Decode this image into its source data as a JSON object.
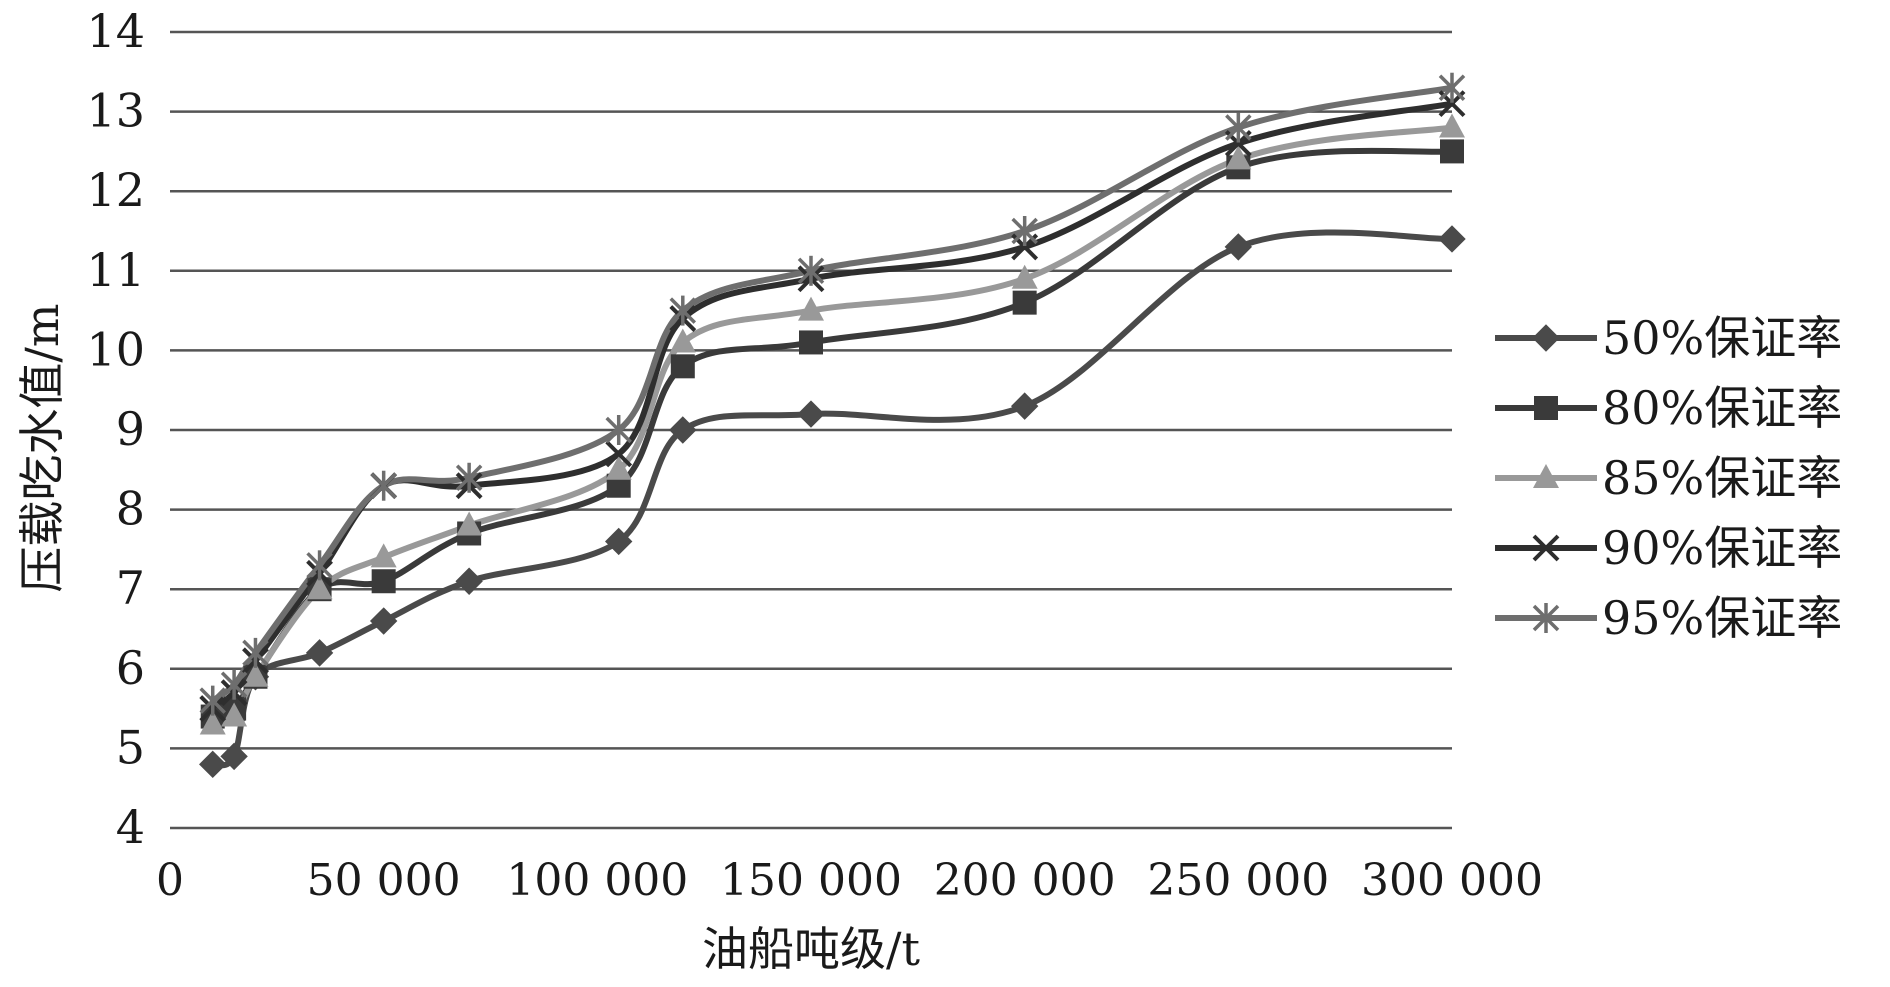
{
  "chart_data": {
    "type": "line",
    "title": "",
    "xlabel": "油船吨级/t",
    "ylabel": "压载吃水值/m",
    "x_ticks": [
      "0",
      "50 000",
      "100 000",
      "150 000",
      "200 000",
      "250 000",
      "300 000"
    ],
    "y_ticks": [
      "4",
      "5",
      "6",
      "7",
      "8",
      "9",
      "10",
      "11",
      "12",
      "13",
      "14"
    ],
    "xlim": [
      0,
      300000
    ],
    "ylim": [
      4,
      14
    ],
    "grid": "horizontal",
    "legend_position": "right",
    "x": [
      10000,
      15000,
      20000,
      35000,
      50000,
      70000,
      105000,
      120000,
      150000,
      200000,
      250000,
      300000
    ],
    "series": [
      {
        "name": "50%保证率",
        "marker": "diamond",
        "color": "#4a4a4a",
        "values": [
          4.8,
          4.9,
          5.9,
          6.2,
          6.6,
          7.1,
          7.6,
          9.0,
          9.2,
          9.3,
          11.3,
          11.4
        ]
      },
      {
        "name": "80%保证率",
        "marker": "square",
        "color": "#3a3a3a",
        "values": [
          5.4,
          5.5,
          5.9,
          7.0,
          7.1,
          7.7,
          8.3,
          9.8,
          10.1,
          10.6,
          12.3,
          12.5
        ]
      },
      {
        "name": "85%保证率",
        "marker": "triangle",
        "color": "#999999",
        "values": [
          5.3,
          5.4,
          5.9,
          7.0,
          7.4,
          7.8,
          8.5,
          10.1,
          10.5,
          10.9,
          12.4,
          12.8
        ]
      },
      {
        "name": "90%保证率",
        "marker": "x",
        "color": "#2e2e2e",
        "values": [
          5.5,
          5.7,
          6.1,
          7.2,
          8.3,
          8.3,
          8.7,
          10.4,
          10.9,
          11.3,
          12.6,
          13.1
        ]
      },
      {
        "name": "95%保证率",
        "marker": "star",
        "color": "#6e6e6e",
        "values": [
          5.6,
          5.8,
          6.2,
          7.3,
          8.3,
          8.4,
          9.0,
          10.5,
          11.0,
          11.5,
          12.8,
          13.3
        ]
      }
    ]
  }
}
